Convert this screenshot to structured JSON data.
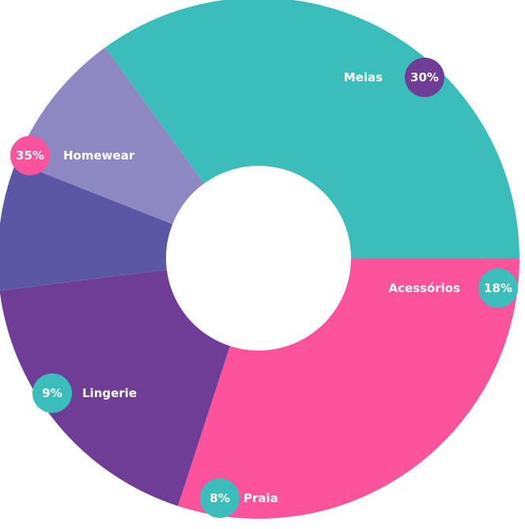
{
  "chart_data": {
    "type": "pie",
    "donut": true,
    "categories": [
      "Meias",
      "Acessórios",
      "Praia",
      "Lingerie",
      "Homewear"
    ],
    "values": [
      30,
      18,
      8,
      9,
      35
    ],
    "value_labels": [
      "30%",
      "18%",
      "8%",
      "9%",
      "35%"
    ],
    "colors": [
      "#fd539d",
      "#6f3c96",
      "#5a57a4",
      "#8e88c2",
      "#3bbdbc"
    ],
    "badge_colors": [
      "#6f3c96",
      "#3bbdbc",
      "#3bbdbc",
      "#3bbdbc",
      "#fd539d"
    ],
    "title": "",
    "legend": "none"
  }
}
